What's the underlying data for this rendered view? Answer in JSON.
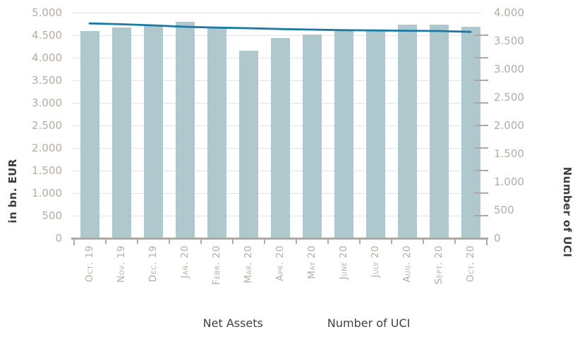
{
  "chart_data": {
    "type": "combo",
    "categories": [
      "Oct. 19",
      "Nov. 19",
      "Dec. 19",
      "Jan. 20",
      "Febr. 20",
      "Mar. 20",
      "Apr. 20",
      "May 20",
      "June 20",
      "July 20",
      "Aug. 20",
      "Sept. 20",
      "Oct. 20"
    ],
    "series": [
      {
        "name": "Net Assets",
        "type": "bar",
        "axis": "left",
        "color": "#aec8ce",
        "values": [
          4600,
          4675,
          4700,
          4800,
          4655,
          4160,
          4435,
          4510,
          4605,
          4610,
          4730,
          4730,
          4690
        ]
      },
      {
        "name": "Number of UCI",
        "type": "line",
        "axis": "right",
        "color": "#1b79a5",
        "values": [
          3810,
          3795,
          3775,
          3750,
          3735,
          3725,
          3710,
          3700,
          3690,
          3685,
          3680,
          3675,
          3660
        ]
      }
    ],
    "left_axis": {
      "title": "in bn. EUR",
      "min": 0,
      "max": 5000,
      "step": 500,
      "tick_labels": [
        "0",
        "500",
        "1.000",
        "1.500",
        "2.000",
        "2.500",
        "3.000",
        "3.500",
        "4.000",
        "4.500",
        "5.000"
      ]
    },
    "right_axis": {
      "title": "Number of UCI",
      "min": 0,
      "max": 4000,
      "step": 500,
      "tick_labels": [
        "0",
        "500",
        "1.000",
        "1.500",
        "2.000",
        "2.500",
        "3.000",
        "3.500",
        "4.000"
      ]
    },
    "legend": {
      "position": "bottom",
      "entries": [
        "Net Assets",
        "Number of UCI"
      ]
    },
    "grid": true,
    "number_format": "thousands-dot"
  },
  "colors": {
    "bar": "#aec8ce",
    "line": "#1b79a5",
    "axis": "#b3a89e",
    "tick_text": "#b5aca3",
    "grid": "#e4e4e4",
    "title_text": "#3d3d3d",
    "legend_text": "#404040",
    "background": "#ffffff"
  }
}
